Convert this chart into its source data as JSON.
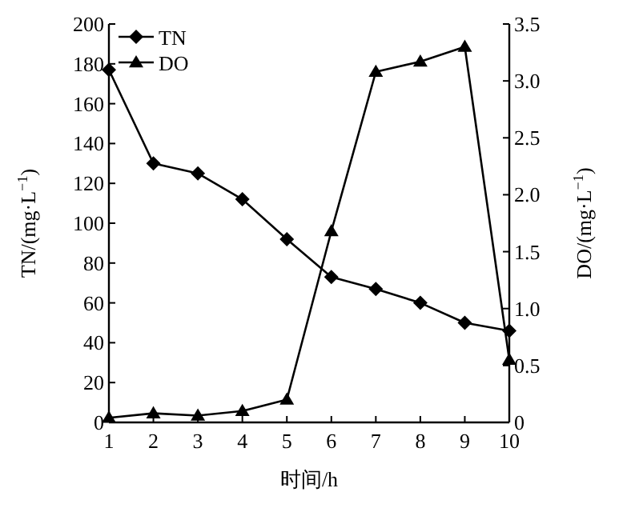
{
  "chart_data": {
    "type": "line",
    "xlabel": "时间/h",
    "ylabel": "TN/(mg·L$^{−1}$)",
    "y2label": "DO/(mg·L$^{−1}$)",
    "x": [
      1,
      2,
      3,
      4,
      5,
      6,
      7,
      8,
      9,
      10
    ],
    "series": [
      {
        "name": "TN",
        "color": "#000000",
        "marker": "diamond",
        "values": [
          177,
          130,
          125,
          112,
          92,
          73,
          67,
          60,
          50,
          46
        ]
      },
      {
        "name": "DO",
        "color": "#000000",
        "marker": "triangle",
        "axis": "y2",
        "values": [
          0.04,
          0.08,
          0.06,
          0.1,
          0.2,
          1.68,
          3.08,
          3.17,
          3.3,
          0.55
        ]
      }
    ],
    "xlim": [
      1,
      10
    ],
    "xticks": [
      1,
      2,
      3,
      4,
      5,
      6,
      7,
      8,
      9,
      10
    ],
    "ylim": [
      0,
      200
    ],
    "yticks": [
      0,
      20,
      40,
      60,
      80,
      100,
      120,
      140,
      160,
      180,
      200
    ],
    "y2lim": [
      0,
      3.5
    ],
    "y2ticks": [
      0,
      0.5,
      {
        "value": 1,
        "label": "1.0"
      },
      1.5,
      {
        "value": 2,
        "label": "2.0"
      },
      2.5,
      {
        "value": 3,
        "label": "3.0"
      },
      3.5
    ],
    "legend": "top left",
    "grid": false,
    "line_style": "solid"
  }
}
